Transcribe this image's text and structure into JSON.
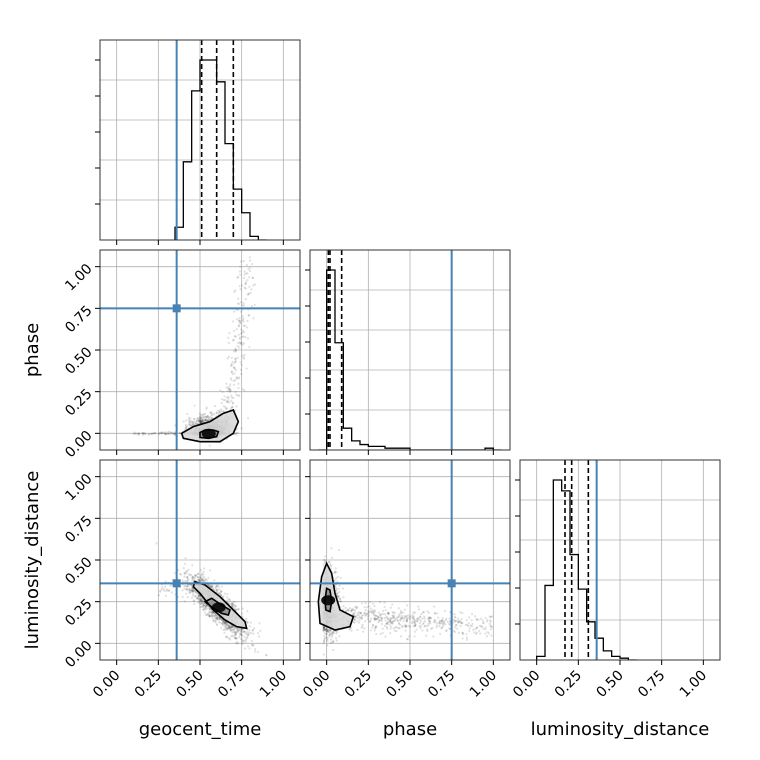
{
  "chart_data": {
    "type": "corner",
    "parameters": [
      "geocent_time",
      "phase",
      "luminosity_distance"
    ],
    "axis_range": [
      -0.1,
      1.1
    ],
    "tick_values": [
      0.0,
      0.25,
      0.5,
      0.75,
      1.0
    ],
    "tick_labels": [
      "0.00",
      "0.25",
      "0.50",
      "0.75",
      "1.00"
    ],
    "truths": [
      0.36,
      0.75,
      0.36
    ],
    "truth_color": "#4682b4",
    "grid": true,
    "quantiles": [
      [
        0.51,
        0.6,
        0.7
      ],
      [
        0.01,
        0.02,
        0.09
      ],
      [
        0.17,
        0.21,
        0.31
      ]
    ],
    "histograms": [
      {
        "parameter": "geocent_time",
        "bin_width": 0.05,
        "bin_starts": [
          0.35,
          0.4,
          0.45,
          0.5,
          0.55,
          0.6,
          0.65,
          0.7,
          0.75,
          0.8,
          0.85
        ],
        "counts": [
          0.07,
          0.43,
          0.82,
          0.99,
          0.99,
          0.87,
          0.53,
          0.28,
          0.15,
          0.02,
          0.0
        ]
      },
      {
        "parameter": "phase",
        "bin_width": 0.05,
        "bin_starts": [
          -0.05,
          0.0,
          0.05,
          0.1,
          0.15,
          0.2,
          0.25,
          0.3,
          0.35,
          0.4,
          0.45,
          0.5,
          0.55,
          0.6,
          0.65,
          0.7,
          0.75,
          0.8,
          0.85,
          0.9,
          0.95,
          1.0
        ],
        "counts": [
          0.0,
          0.99,
          0.59,
          0.12,
          0.05,
          0.03,
          0.02,
          0.02,
          0.01,
          0.01,
          0.01,
          0.0,
          0.0,
          0.0,
          0.0,
          0.0,
          0.0,
          0.0,
          0.0,
          0.0,
          0.01,
          0.0
        ]
      },
      {
        "parameter": "luminosity_distance",
        "bin_width": 0.05,
        "bin_starts": [
          0.0,
          0.05,
          0.1,
          0.15,
          0.2,
          0.25,
          0.3,
          0.35,
          0.4,
          0.45,
          0.5,
          0.55
        ],
        "counts": [
          0.02,
          0.41,
          0.99,
          0.93,
          0.58,
          0.39,
          0.21,
          0.12,
          0.05,
          0.02,
          0.01,
          0.0
        ]
      }
    ],
    "panels_2d": [
      {
        "x": "geocent_time",
        "y": "phase",
        "scatter": {
          "n": 1600,
          "center": [
            0.55,
            0.0
          ]
        },
        "contours": [
          {
            "level": 0.39,
            "points": [
              [
                0.5,
                -0.025
              ],
              [
                0.55,
                -0.03
              ],
              [
                0.6,
                -0.02
              ],
              [
                0.61,
                0.01
              ],
              [
                0.58,
                0.02
              ],
              [
                0.53,
                0.02
              ],
              [
                0.5,
                0.005
              ]
            ]
          },
          {
            "level": 0.86,
            "points": [
              [
                0.4,
                -0.03
              ],
              [
                0.5,
                -0.05
              ],
              [
                0.62,
                -0.05
              ],
              [
                0.7,
                0.0
              ],
              [
                0.73,
                0.07
              ],
              [
                0.7,
                0.14
              ],
              [
                0.64,
                0.12
              ],
              [
                0.56,
                0.07
              ],
              [
                0.46,
                0.04
              ],
              [
                0.39,
                0.0
              ]
            ]
          }
        ]
      },
      {
        "x": "geocent_time",
        "y": "luminosity_distance",
        "scatter": {
          "n": 1500,
          "center": [
            0.6,
            0.23
          ]
        },
        "contours": [
          {
            "level": 0.39,
            "points": [
              [
                0.53,
                0.25
              ],
              [
                0.58,
                0.21
              ],
              [
                0.63,
                0.18
              ],
              [
                0.67,
                0.17
              ],
              [
                0.68,
                0.2
              ],
              [
                0.63,
                0.23
              ],
              [
                0.57,
                0.27
              ]
            ]
          },
          {
            "level": 0.86,
            "points": [
              [
                0.46,
                0.34
              ],
              [
                0.5,
                0.3
              ],
              [
                0.58,
                0.2
              ],
              [
                0.65,
                0.14
              ],
              [
                0.72,
                0.1
              ],
              [
                0.78,
                0.09
              ],
              [
                0.77,
                0.13
              ],
              [
                0.7,
                0.2
              ],
              [
                0.62,
                0.28
              ],
              [
                0.53,
                0.35
              ],
              [
                0.47,
                0.37
              ]
            ]
          }
        ]
      },
      {
        "x": "phase",
        "y": "luminosity_distance",
        "scatter": {
          "n": 1500,
          "center": [
            0.02,
            0.25
          ]
        },
        "contours": [
          {
            "level": 0.39,
            "points": [
              [
                -0.005,
                0.2
              ],
              [
                0.02,
                0.19
              ],
              [
                0.03,
                0.25
              ],
              [
                0.02,
                0.32
              ],
              [
                0.0,
                0.33
              ],
              [
                -0.01,
                0.26
              ]
            ]
          },
          {
            "level": 0.86,
            "points": [
              [
                -0.04,
                0.12
              ],
              [
                0.05,
                0.08
              ],
              [
                0.14,
                0.1
              ],
              [
                0.16,
                0.16
              ],
              [
                0.08,
                0.2
              ],
              [
                0.05,
                0.3
              ],
              [
                0.03,
                0.42
              ],
              [
                0.0,
                0.48
              ],
              [
                -0.03,
                0.4
              ],
              [
                -0.05,
                0.25
              ]
            ]
          }
        ]
      }
    ]
  }
}
